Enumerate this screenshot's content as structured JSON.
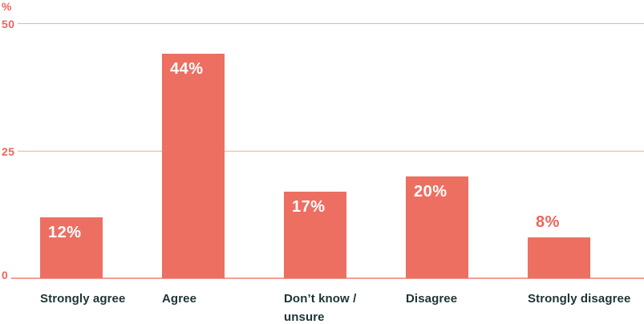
{
  "chart_data": {
    "type": "bar",
    "title": "",
    "unit_label": "%",
    "categories": [
      "Strongly agree",
      "Agree",
      "Don’t know /\nunsure",
      "Disagree",
      "Strongly disagree"
    ],
    "values": [
      12,
      44,
      17,
      20,
      8
    ],
    "value_labels": [
      "12%",
      "44%",
      "17%",
      "20%",
      "8%"
    ],
    "yticks": [
      {
        "value": 0,
        "label": "0"
      },
      {
        "value": 25,
        "label": "25"
      },
      {
        "value": 50,
        "label": "50"
      }
    ],
    "ylim": [
      0,
      50
    ],
    "grid": true,
    "legend": false,
    "bar_color": "#ed6f62",
    "value_label_inside_color": "#ffffff",
    "value_label_outside_color": "#ec655c"
  },
  "colors": {
    "bar": "#ed6f62",
    "axis_text": "#ec655c",
    "gridline": "#f3aba1",
    "baseline": "#f09f96",
    "category_text": "#1e3434",
    "value_text_inside": "#ffffff",
    "background": "#ffffff"
  }
}
